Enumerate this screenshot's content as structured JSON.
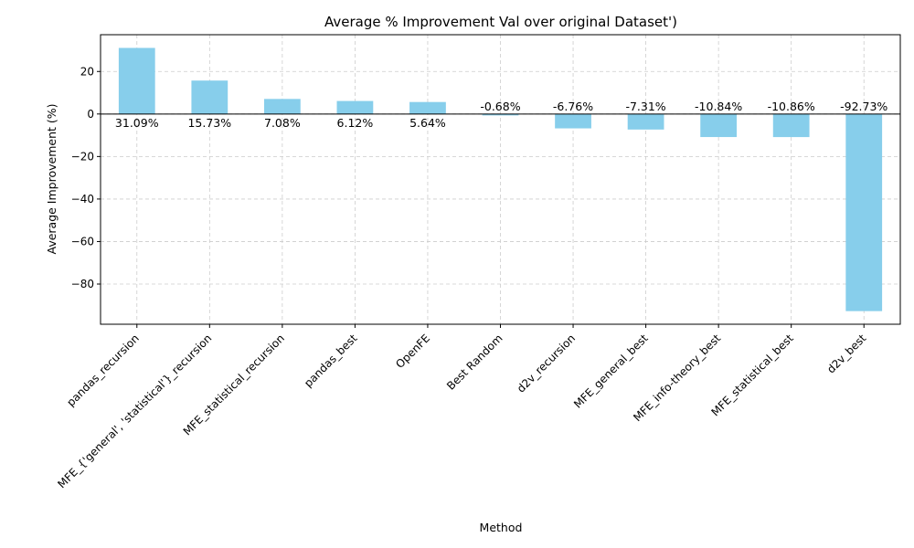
{
  "chart_data": {
    "type": "bar",
    "title": "Average % Improvement Val over original Dataset')",
    "xlabel": "Method",
    "ylabel": "Average Improvement (%)",
    "categories": [
      "pandas_recursion",
      "MFE_{'general', 'statistical'}_recursion",
      "MFE_statistical_recursion",
      "pandas_best",
      "OpenFE",
      "Best Random",
      "d2v_recursion",
      "MFE_general_best",
      "MFE_info-theory_best",
      "MFE_statistical_best",
      "d2v_best"
    ],
    "values": [
      31.09,
      15.73,
      7.08,
      6.12,
      5.64,
      -0.68,
      -6.76,
      -7.31,
      -10.84,
      -10.86,
      -92.73
    ],
    "data_labels": [
      "31.09%",
      "15.73%",
      "7.08%",
      "6.12%",
      "5.64%",
      "-0.68%",
      "-6.76%",
      "-7.31%",
      "-10.84%",
      "-10.86%",
      "-92.73%"
    ],
    "y_ticks": [
      20,
      0,
      -20,
      -40,
      -60,
      -80
    ],
    "y_tick_labels": [
      "20",
      "0",
      "−20",
      "−40",
      "−60",
      "−80"
    ],
    "ylim": [
      -98.9,
      37.3
    ],
    "grid": true,
    "bar_color": "#87CEEB",
    "zero_line_color": "#000000",
    "grid_color": "#cccccc"
  }
}
